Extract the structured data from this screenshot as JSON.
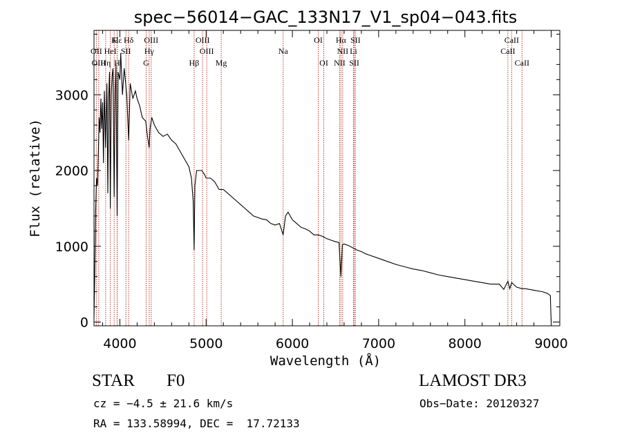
{
  "chart_data": {
    "type": "line",
    "title": "spec−56014−GAC_133N17_V1_sp04−043.fits",
    "xlabel": "Wavelength (Å)",
    "ylabel": "Flux (relative)",
    "xlim": [
      3700,
      9100
    ],
    "ylim": [
      -50,
      3850
    ],
    "xticks": [
      4000,
      5000,
      6000,
      7000,
      8000,
      9000
    ],
    "yticks": [
      0,
      1000,
      2000,
      3000
    ],
    "series": [
      {
        "name": "spectrum",
        "x": [
          3700,
          3710,
          3720,
          3730,
          3740,
          3750,
          3760,
          3770,
          3780,
          3790,
          3800,
          3810,
          3820,
          3835,
          3850,
          3860,
          3870,
          3880,
          3889,
          3900,
          3910,
          3920,
          3934,
          3945,
          3955,
          3968,
          3980,
          3990,
          4000,
          4010,
          4030,
          4050,
          4080,
          4102,
          4120,
          4150,
          4180,
          4200,
          4230,
          4260,
          4300,
          4320,
          4340,
          4350,
          4370,
          4400,
          4450,
          4500,
          4550,
          4600,
          4650,
          4700,
          4750,
          4800,
          4830,
          4850,
          4861,
          4870,
          4890,
          4920,
          4950,
          4980,
          5000,
          5050,
          5100,
          5150,
          5200,
          5250,
          5300,
          5350,
          5400,
          5450,
          5500,
          5550,
          5600,
          5650,
          5700,
          5750,
          5800,
          5850,
          5893,
          5920,
          5950,
          6000,
          6050,
          6100,
          6150,
          6200,
          6250,
          6300,
          6350,
          6400,
          6450,
          6500,
          6540,
          6563,
          6580,
          6600,
          6650,
          6700,
          6750,
          6800,
          6850,
          6900,
          7000,
          7100,
          7200,
          7300,
          7400,
          7500,
          7600,
          7700,
          7800,
          7900,
          8000,
          8100,
          8200,
          8300,
          8400,
          8450,
          8498,
          8520,
          8542,
          8600,
          8662,
          8700,
          8800,
          8900,
          8950,
          8990,
          9000
        ],
        "y": [
          50,
          700,
          1500,
          1900,
          1800,
          2200,
          2700,
          2500,
          2950,
          2550,
          2900,
          2100,
          3050,
          2300,
          3150,
          1700,
          2950,
          3300,
          1500,
          3000,
          3250,
          3350,
          1650,
          3000,
          3400,
          1400,
          3300,
          3250,
          3200,
          3550,
          3000,
          3350,
          3000,
          2400,
          3150,
          2950,
          3050,
          2950,
          2850,
          2700,
          2650,
          2450,
          2300,
          2550,
          2700,
          2600,
          2500,
          2450,
          2480,
          2400,
          2350,
          2250,
          2150,
          2050,
          1900,
          1600,
          950,
          1800,
          2000,
          2000,
          2000,
          1950,
          1900,
          1900,
          1850,
          1750,
          1750,
          1700,
          1650,
          1600,
          1550,
          1500,
          1450,
          1400,
          1380,
          1360,
          1350,
          1300,
          1280,
          1300,
          1150,
          1400,
          1450,
          1350,
          1300,
          1250,
          1230,
          1200,
          1150,
          1150,
          1130,
          1100,
          1080,
          1060,
          1050,
          600,
          1020,
          1030,
          1010,
          980,
          950,
          930,
          900,
          880,
          840,
          800,
          760,
          730,
          700,
          680,
          650,
          620,
          600,
          580,
          560,
          540,
          520,
          500,
          500,
          430,
          540,
          440,
          520,
          460,
          440,
          440,
          420,
          400,
          380,
          350,
          0
        ]
      }
    ],
    "line_labels": [
      {
        "label": "Hε",
        "wave": 3970,
        "row": 1
      },
      {
        "label": "K",
        "wave": 3934,
        "row": 1
      },
      {
        "label": "Hδ",
        "wave": 4102,
        "row": 1
      },
      {
        "label": "OIII",
        "wave": 4363,
        "row": 1
      },
      {
        "label": "OIII",
        "wave": 4959,
        "row": 1
      },
      {
        "label": "OI",
        "wave": 6300,
        "row": 1
      },
      {
        "label": "Hα",
        "wave": 6563,
        "row": 1
      },
      {
        "label": "SII",
        "wave": 6731,
        "row": 1
      },
      {
        "label": "CaII",
        "wave": 8542,
        "row": 1
      },
      {
        "label": "OII",
        "wave": 3727,
        "row": 2
      },
      {
        "label": "HeI",
        "wave": 3889,
        "row": 2
      },
      {
        "label": "SII",
        "wave": 4070,
        "row": 2
      },
      {
        "label": "Hγ",
        "wave": 4340,
        "row": 2
      },
      {
        "label": "OIII",
        "wave": 5007,
        "row": 2
      },
      {
        "label": "Na",
        "wave": 5893,
        "row": 2
      },
      {
        "label": "NII",
        "wave": 6583,
        "row": 2
      },
      {
        "label": "Li",
        "wave": 6708,
        "row": 2
      },
      {
        "label": "CaII",
        "wave": 8498,
        "row": 2
      },
      {
        "label": "OIII",
        "wave": 3755,
        "row": 3
      },
      {
        "label": "Hη",
        "wave": 3835,
        "row": 3
      },
      {
        "label": "H",
        "wave": 3968,
        "row": 3
      },
      {
        "label": "G",
        "wave": 4305,
        "row": 3
      },
      {
        "label": "Hβ",
        "wave": 4861,
        "row": 3
      },
      {
        "label": "Mg",
        "wave": 5175,
        "row": 3
      },
      {
        "label": "OI",
        "wave": 6364,
        "row": 3
      },
      {
        "label": "NII",
        "wave": 6548,
        "row": 3
      },
      {
        "label": "SII",
        "wave": 6717,
        "row": 3
      },
      {
        "label": "CaII",
        "wave": 8662,
        "row": 3
      }
    ]
  },
  "info": {
    "object_class": "STAR",
    "subclass": "F0",
    "survey": "LAMOST DR3",
    "redshift": "cz = −4.5 ± 21.6 km/s",
    "obs_date": "Obs−Date: 20120327",
    "coords": "RA = 133.58994, DEC =  17.72133"
  }
}
